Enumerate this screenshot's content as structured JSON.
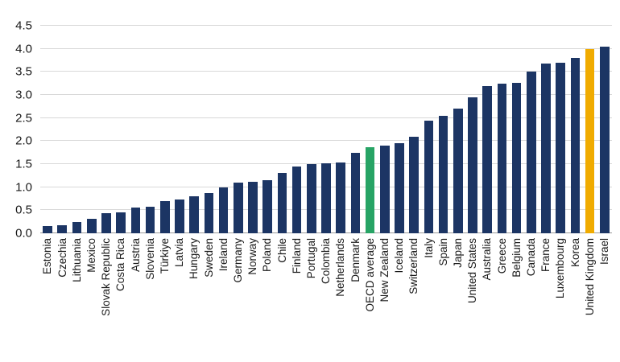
{
  "chart_data": {
    "type": "bar",
    "title": "",
    "xlabel": "",
    "ylabel": "",
    "grid": true,
    "legend": "none",
    "x_label_rotation": 90,
    "ylim": [
      0,
      4.5
    ],
    "ytick_labels": [
      "0.0",
      "0.5",
      "1.0",
      "1.5",
      "2.0",
      "2.5",
      "3.0",
      "3.5",
      "4.0",
      "4.5"
    ],
    "bar_color_default": "#1c3564",
    "gridline_color": "#d8d8d8",
    "highlights": [
      {
        "category": "OECD average",
        "color": "#27a465"
      },
      {
        "category": "United Kingdom",
        "color": "#f0ab00"
      }
    ],
    "categories": [
      "Estonia",
      "Czechia",
      "Lithuania",
      "Mexico",
      "Slovak Republic",
      "Costa Rica",
      "Austria",
      "Slovenia",
      "Türkiye",
      "Latvia",
      "Hungary",
      "Sweden",
      "Ireland",
      "Germany",
      "Norway",
      "Poland",
      "Chile",
      "Finland",
      "Portugal",
      "Colombia",
      "Netherlands",
      "Denmark",
      "OECD average",
      "New Zealand",
      "Iceland",
      "Switzerland",
      "Italy",
      "Spain",
      "Japan",
      "United States",
      "Australia",
      "Greece",
      "Belgium",
      "Canada",
      "France",
      "Luxembourg",
      "Korea",
      "United Kingdom",
      "Israel"
    ],
    "values": [
      0.15,
      0.17,
      0.25,
      0.31,
      0.44,
      0.46,
      0.55,
      0.57,
      0.7,
      0.74,
      0.8,
      0.87,
      1.0,
      1.1,
      1.12,
      1.15,
      1.3,
      1.44,
      1.5,
      1.52,
      1.53,
      1.75,
      1.87,
      1.9,
      1.95,
      2.1,
      2.45,
      2.55,
      2.7,
      2.95,
      3.2,
      3.25,
      3.27,
      3.5,
      3.68,
      3.7,
      3.8,
      4.0,
      4.05
    ]
  }
}
